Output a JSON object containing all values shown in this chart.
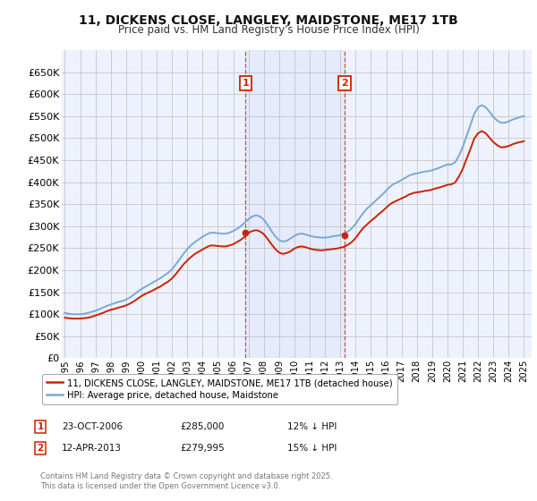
{
  "title": "11, DICKENS CLOSE, LANGLEY, MAIDSTONE, ME17 1TB",
  "subtitle": "Price paid vs. HM Land Registry's House Price Index (HPI)",
  "ylim": [
    0,
    700000
  ],
  "yticks": [
    0,
    50000,
    100000,
    150000,
    200000,
    250000,
    300000,
    350000,
    400000,
    450000,
    500000,
    550000,
    600000,
    650000
  ],
  "xlim_start": 1994.8,
  "xlim_end": 2025.5,
  "bg_color": "#ffffff",
  "grid_color": "#cccccc",
  "plot_bg": "#eef2ff",
  "hpi_color": "#7aa8d4",
  "price_color": "#cc2200",
  "sale1_date": 2006.81,
  "sale1_price": 285000,
  "sale2_date": 2013.27,
  "sale2_price": 279995,
  "shade_start": 2006.81,
  "shade_end": 2013.27,
  "legend_label1": "11, DICKENS CLOSE, LANGLEY, MAIDSTONE, ME17 1TB (detached house)",
  "legend_label2": "HPI: Average price, detached house, Maidstone",
  "table_row1": [
    "1",
    "23-OCT-2006",
    "£285,000",
    "12% ↓ HPI"
  ],
  "table_row2": [
    "2",
    "12-APR-2013",
    "£279,995",
    "15% ↓ HPI"
  ],
  "footer": "Contains HM Land Registry data © Crown copyright and database right 2025.\nThis data is licensed under the Open Government Licence v3.0.",
  "hpi_data_x": [
    1995.0,
    1995.25,
    1995.5,
    1995.75,
    1996.0,
    1996.25,
    1996.5,
    1996.75,
    1997.0,
    1997.25,
    1997.5,
    1997.75,
    1998.0,
    1998.25,
    1998.5,
    1998.75,
    1999.0,
    1999.25,
    1999.5,
    1999.75,
    2000.0,
    2000.25,
    2000.5,
    2000.75,
    2001.0,
    2001.25,
    2001.5,
    2001.75,
    2002.0,
    2002.25,
    2002.5,
    2002.75,
    2003.0,
    2003.25,
    2003.5,
    2003.75,
    2004.0,
    2004.25,
    2004.5,
    2004.75,
    2005.0,
    2005.25,
    2005.5,
    2005.75,
    2006.0,
    2006.25,
    2006.5,
    2006.75,
    2007.0,
    2007.25,
    2007.5,
    2007.75,
    2008.0,
    2008.25,
    2008.5,
    2008.75,
    2009.0,
    2009.25,
    2009.5,
    2009.75,
    2010.0,
    2010.25,
    2010.5,
    2010.75,
    2011.0,
    2011.25,
    2011.5,
    2011.75,
    2012.0,
    2012.25,
    2012.5,
    2012.75,
    2013.0,
    2013.25,
    2013.5,
    2013.75,
    2014.0,
    2014.25,
    2014.5,
    2014.75,
    2015.0,
    2015.25,
    2015.5,
    2015.75,
    2016.0,
    2016.25,
    2016.5,
    2016.75,
    2017.0,
    2017.25,
    2017.5,
    2017.75,
    2018.0,
    2018.25,
    2018.5,
    2018.75,
    2019.0,
    2019.25,
    2019.5,
    2019.75,
    2020.0,
    2020.25,
    2020.5,
    2020.75,
    2021.0,
    2021.25,
    2021.5,
    2021.75,
    2022.0,
    2022.25,
    2022.5,
    2022.75,
    2023.0,
    2023.25,
    2023.5,
    2023.75,
    2024.0,
    2024.25,
    2024.5,
    2024.75,
    2025.0
  ],
  "hpi_data_y": [
    103000,
    101000,
    100000,
    100000,
    100000,
    101000,
    103000,
    105000,
    108000,
    111000,
    115000,
    119000,
    122000,
    125000,
    128000,
    130000,
    133000,
    138000,
    144000,
    151000,
    157000,
    162000,
    167000,
    172000,
    177000,
    182000,
    188000,
    194000,
    202000,
    213000,
    225000,
    237000,
    248000,
    257000,
    264000,
    270000,
    276000,
    281000,
    285000,
    285000,
    284000,
    283000,
    283000,
    285000,
    289000,
    294000,
    300000,
    308000,
    316000,
    322000,
    325000,
    322000,
    315000,
    303000,
    289000,
    277000,
    268000,
    265000,
    267000,
    272000,
    278000,
    282000,
    283000,
    281000,
    278000,
    276000,
    275000,
    274000,
    274000,
    275000,
    277000,
    278000,
    280000,
    283000,
    288000,
    295000,
    305000,
    318000,
    330000,
    340000,
    348000,
    356000,
    364000,
    372000,
    381000,
    390000,
    396000,
    400000,
    405000,
    410000,
    415000,
    418000,
    420000,
    422000,
    424000,
    425000,
    427000,
    430000,
    433000,
    437000,
    440000,
    440000,
    445000,
    460000,
    480000,
    505000,
    530000,
    555000,
    570000,
    575000,
    570000,
    560000,
    548000,
    540000,
    535000,
    535000,
    538000,
    542000,
    545000,
    548000,
    550000
  ],
  "price_data_x": [
    1995.0,
    1995.25,
    1995.5,
    1995.75,
    1996.0,
    1996.25,
    1996.5,
    1996.75,
    1997.0,
    1997.25,
    1997.5,
    1997.75,
    1998.0,
    1998.25,
    1998.5,
    1998.75,
    1999.0,
    1999.25,
    1999.5,
    1999.75,
    2000.0,
    2000.25,
    2000.5,
    2000.75,
    2001.0,
    2001.25,
    2001.5,
    2001.75,
    2002.0,
    2002.25,
    2002.5,
    2002.75,
    2003.0,
    2003.25,
    2003.5,
    2003.75,
    2004.0,
    2004.25,
    2004.5,
    2004.75,
    2005.0,
    2005.25,
    2005.5,
    2005.75,
    2006.0,
    2006.25,
    2006.5,
    2006.75,
    2007.0,
    2007.25,
    2007.5,
    2007.75,
    2008.0,
    2008.25,
    2008.5,
    2008.75,
    2009.0,
    2009.25,
    2009.5,
    2009.75,
    2010.0,
    2010.25,
    2010.5,
    2010.75,
    2011.0,
    2011.25,
    2011.5,
    2011.75,
    2012.0,
    2012.25,
    2012.5,
    2012.75,
    2013.0,
    2013.25,
    2013.5,
    2013.75,
    2014.0,
    2014.25,
    2014.5,
    2014.75,
    2015.0,
    2015.25,
    2015.5,
    2015.75,
    2016.0,
    2016.25,
    2016.5,
    2016.75,
    2017.0,
    2017.25,
    2017.5,
    2017.75,
    2018.0,
    2018.25,
    2018.5,
    2018.75,
    2019.0,
    2019.25,
    2019.5,
    2019.75,
    2020.0,
    2020.25,
    2020.5,
    2020.75,
    2021.0,
    2021.25,
    2021.5,
    2021.75,
    2022.0,
    2022.25,
    2022.5,
    2022.75,
    2023.0,
    2023.25,
    2023.5,
    2023.75,
    2024.0,
    2024.25,
    2024.5,
    2024.75,
    2025.0
  ],
  "price_data_y": [
    92000,
    91000,
    90000,
    90000,
    90000,
    91000,
    92000,
    94000,
    97000,
    100000,
    103000,
    107000,
    110000,
    112000,
    115000,
    117000,
    120000,
    124000,
    129000,
    135000,
    141000,
    146000,
    150000,
    154000,
    159000,
    163000,
    169000,
    174000,
    181000,
    191000,
    202000,
    213000,
    222000,
    230000,
    237000,
    242000,
    247000,
    252000,
    256000,
    256000,
    255000,
    254000,
    254000,
    256000,
    259000,
    264000,
    269000,
    276000,
    285000,
    289000,
    291000,
    288000,
    282000,
    271000,
    259000,
    248000,
    240000,
    237000,
    239000,
    243000,
    249000,
    253000,
    254000,
    252000,
    249000,
    247000,
    246000,
    245000,
    246000,
    247000,
    248000,
    249000,
    251000,
    253000,
    258000,
    264000,
    273000,
    285000,
    296000,
    304000,
    312000,
    319000,
    327000,
    334000,
    342000,
    350000,
    355000,
    359000,
    363000,
    367000,
    372000,
    375000,
    377000,
    378000,
    380000,
    381000,
    383000,
    386000,
    388000,
    391000,
    394000,
    395000,
    399000,
    413000,
    430000,
    453000,
    475000,
    499000,
    511000,
    516000,
    511000,
    501000,
    491000,
    484000,
    479000,
    480000,
    482000,
    486000,
    489000,
    491000,
    493000
  ]
}
